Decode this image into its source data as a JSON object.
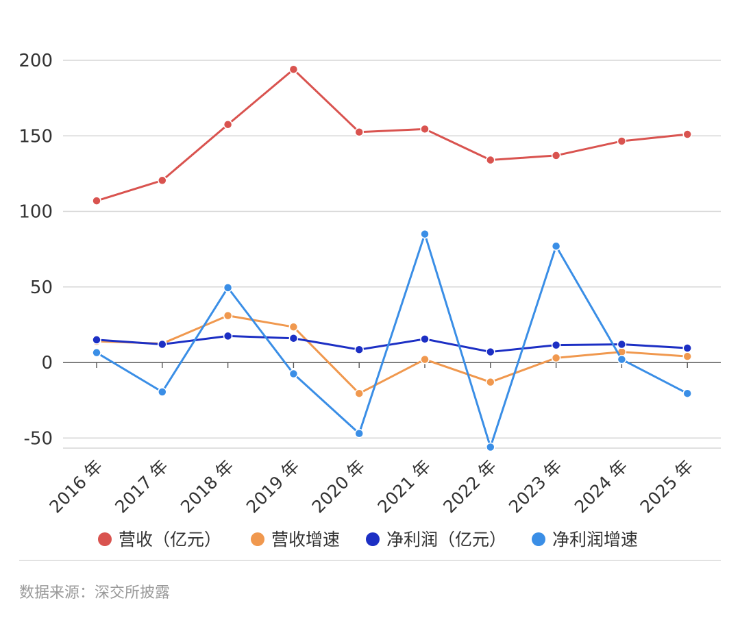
{
  "chart_data": {
    "type": "line",
    "categories": [
      "2016 年",
      "2017 年",
      "2018 年",
      "2019 年",
      "2020 年",
      "2021 年",
      "2022 年",
      "2023 年",
      "2024 年",
      "2025 年"
    ],
    "y_ticks": [
      "200",
      "150",
      "100",
      "50",
      "0",
      "-50"
    ],
    "ylim": [
      -57,
      200
    ],
    "grid": true,
    "legend_position": "bottom",
    "series": [
      {
        "name": "营收（亿元）",
        "color": "#d9534f",
        "values": [
          107,
          120.5,
          157.5,
          194,
          152.5,
          154.5,
          134,
          137,
          146.5,
          151
        ]
      },
      {
        "name": "营收增速",
        "color": "#f0984e",
        "values": [
          14,
          12.5,
          31,
          23.5,
          -20.5,
          2,
          -13,
          3,
          7,
          4
        ]
      },
      {
        "name": "净利润（亿元）",
        "color": "#1c2fc4",
        "values": [
          15,
          12,
          17.5,
          16,
          8.5,
          15.5,
          7,
          11.5,
          12,
          9.5
        ]
      },
      {
        "name": "净利润增速",
        "color": "#3a8ee6",
        "values": [
          6.5,
          -19.5,
          49.5,
          -7.5,
          -47,
          85,
          -56,
          77,
          2,
          -20.5
        ]
      }
    ]
  },
  "footer": {
    "source": "数据来源：深交所披露"
  }
}
